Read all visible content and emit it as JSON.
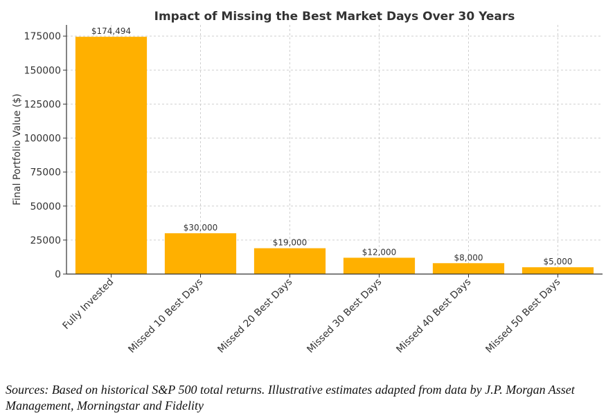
{
  "chart_data": {
    "type": "bar",
    "title": "Impact of Missing the Best Market Days Over 30 Years",
    "xlabel": "",
    "ylabel": "Final Portfolio Value ($)",
    "categories": [
      "Fully Invested",
      "Missed 10 Best Days",
      "Missed 20 Best Days",
      "Missed 30 Best Days",
      "Missed 40 Best Days",
      "Missed 50 Best Days"
    ],
    "values": [
      174494,
      30000,
      19000,
      12000,
      8000,
      5000
    ],
    "data_labels": [
      "$174,494",
      "$30,000",
      "$19,000",
      "$12,000",
      "$8,000",
      "$5,000"
    ],
    "yticks": [
      0,
      25000,
      50000,
      75000,
      100000,
      125000,
      150000,
      175000
    ],
    "ytick_labels": [
      "0",
      "25000",
      "50000",
      "75000",
      "100000",
      "125000",
      "150000",
      "175000"
    ],
    "ylim": [
      0,
      183219
    ],
    "grid": true,
    "bar_color": "#ffb000"
  },
  "caption": "Sources: Based on historical S&P 500 total returns. Illustrative estimates adapted from data by J.P. Morgan Asset Management, Morningstar and Fidelity"
}
